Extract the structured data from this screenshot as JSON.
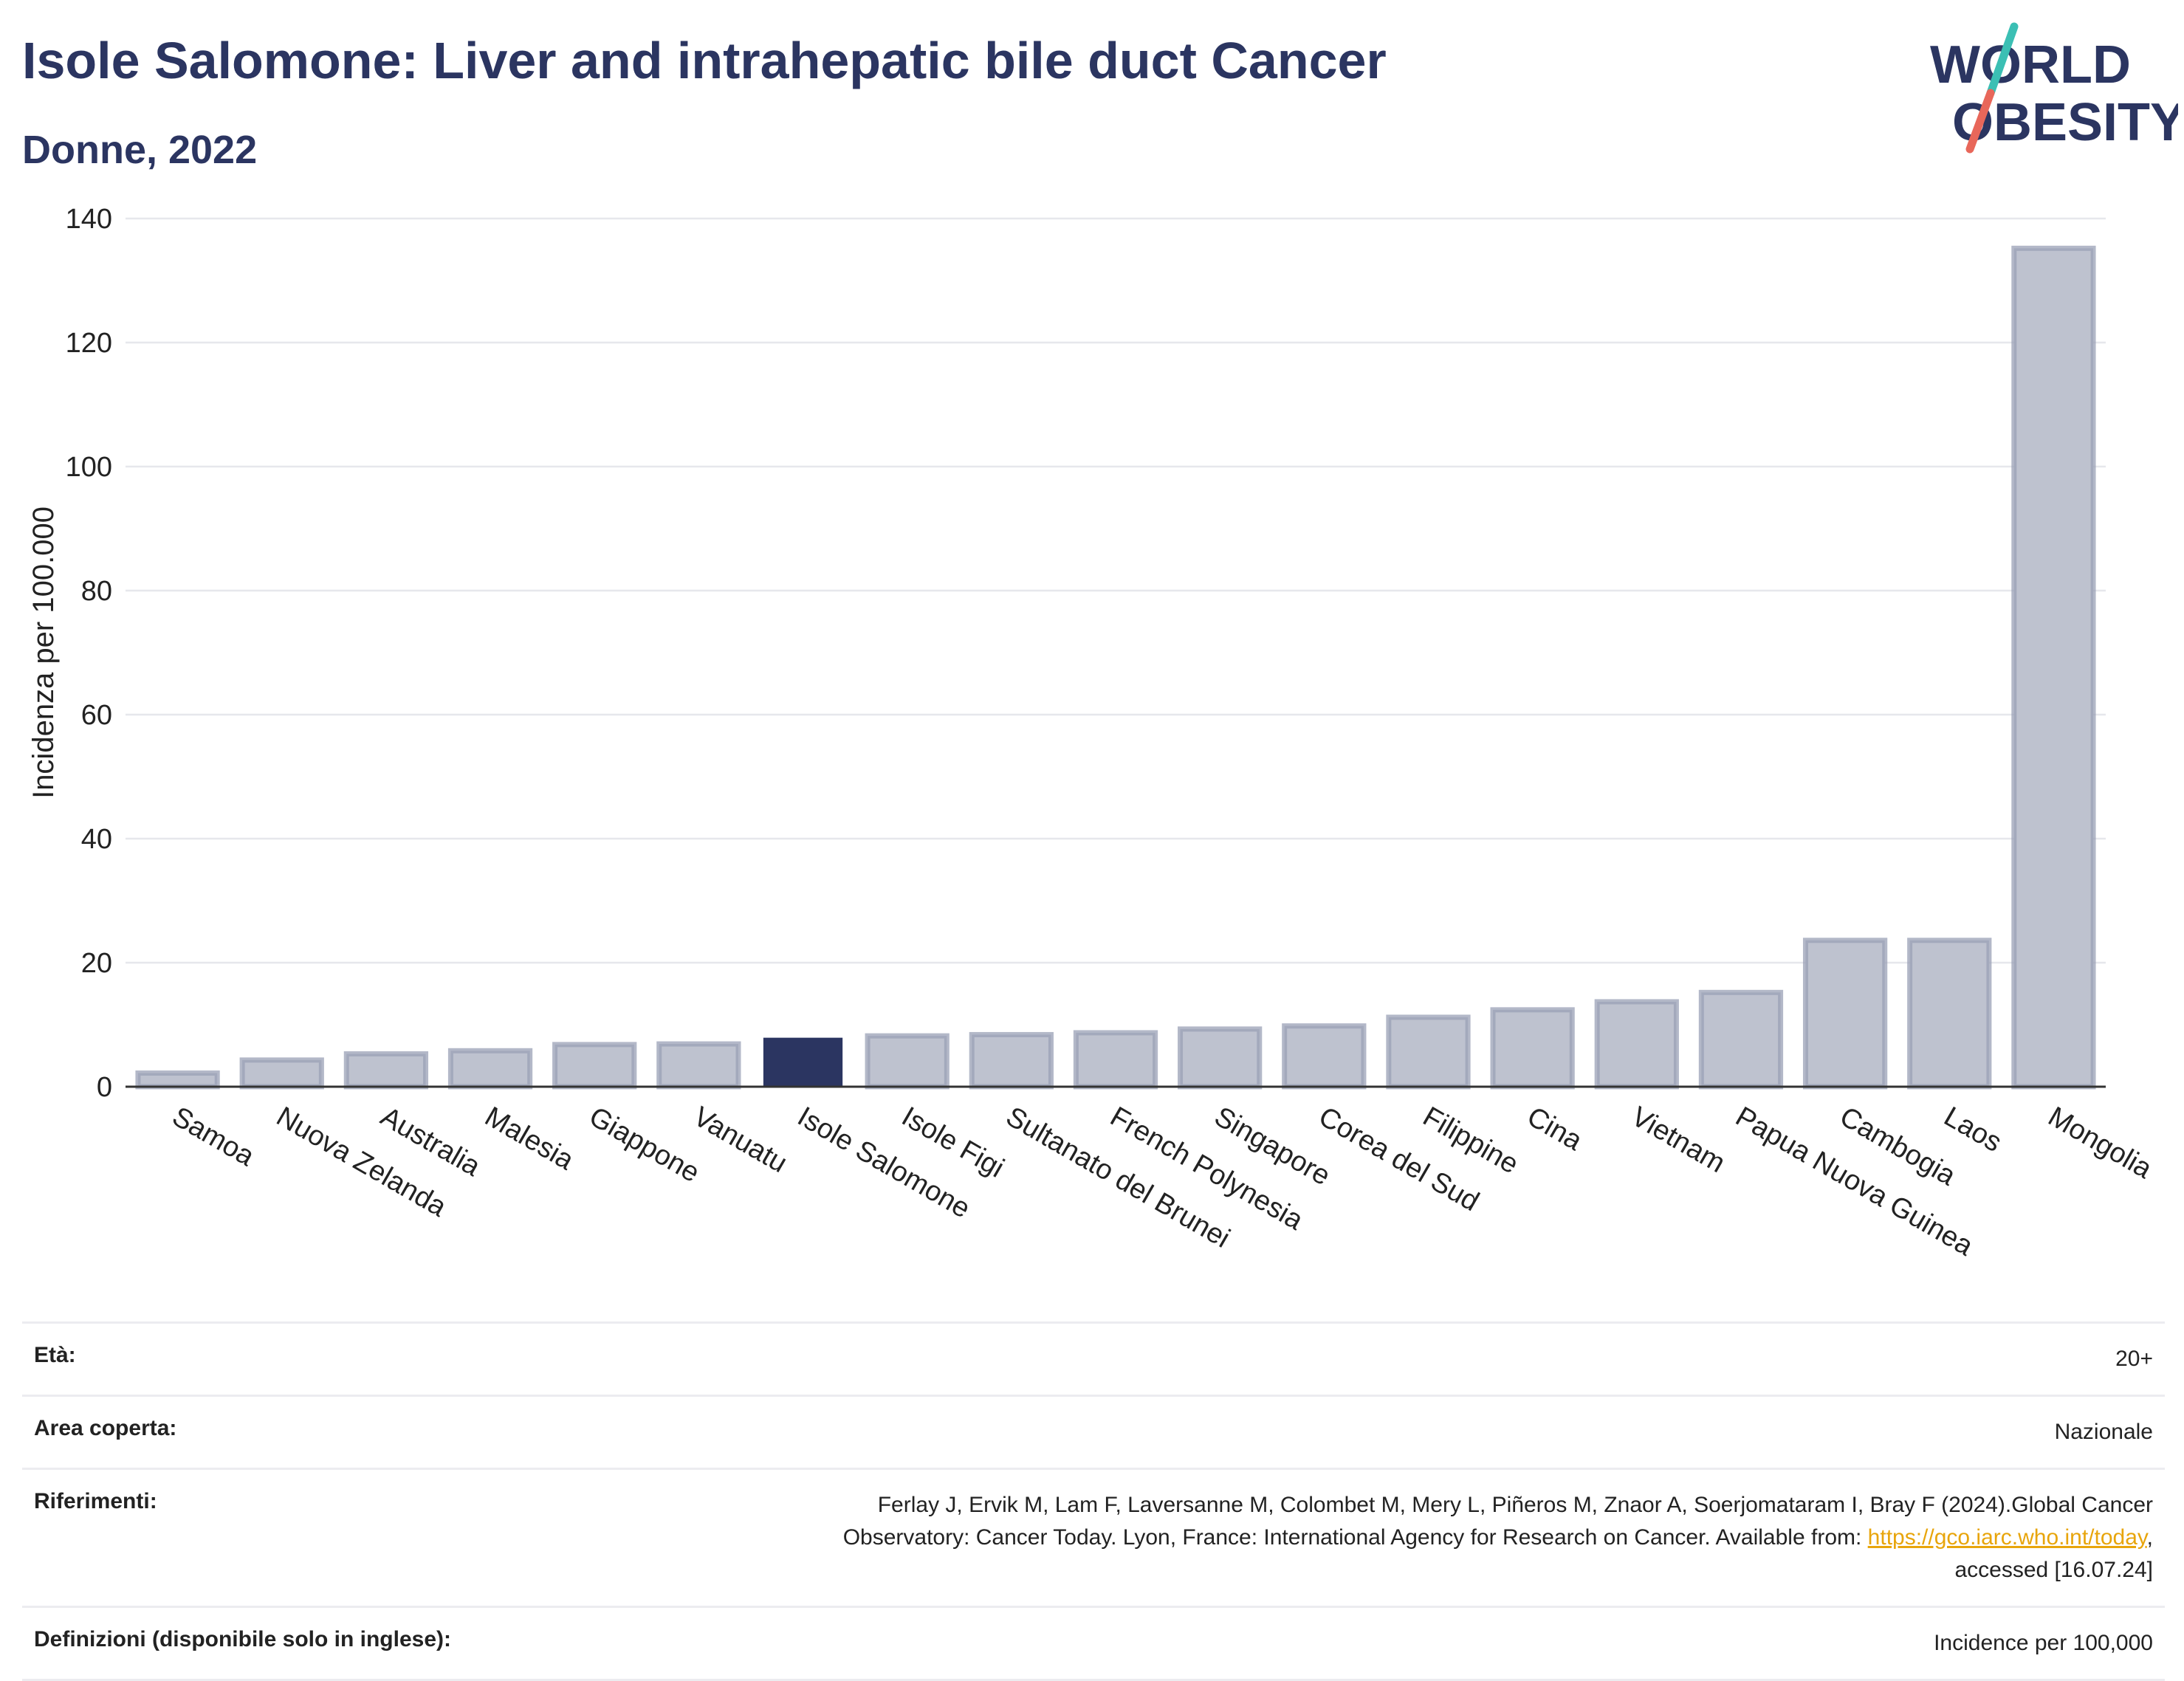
{
  "header": {
    "title": "Isole Salomone: Liver and intrahepatic bile duct Cancer",
    "subtitle": "Donne, 2022"
  },
  "logo": {
    "line1": "WORLD",
    "line2": "OBESITY",
    "colors": {
      "text": "#2b3561",
      "slash_top": "#3bbfb4",
      "slash_bottom": "#e8675a"
    }
  },
  "colors": {
    "bar": "#bec2cf",
    "bar_border": "#9aa0b6",
    "highlight": "#2b3561",
    "grid": "#e6e7ec",
    "axis": "#333333"
  },
  "chart_data": {
    "type": "bar",
    "ylabel": "Incidenza per 100.000",
    "ylim": [
      0,
      140
    ],
    "yticks": [
      0,
      20,
      40,
      60,
      80,
      100,
      120,
      140
    ],
    "grid": true,
    "highlight": "Isole Salomone",
    "categories": [
      "Samoa",
      "Nuova Zelanda",
      "Australia",
      "Malesia",
      "Giappone",
      "Vanuatu",
      "Isole Salomone",
      "Isole Figi",
      "Sultanato del Brunei",
      "French Polynesia",
      "Singapore",
      "Corea del Sud",
      "Filippine",
      "Cina",
      "Vietnam",
      "Papua Nuova Guinea",
      "Cambogia",
      "Laos",
      "Mongolia"
    ],
    "values": [
      2.2,
      4.3,
      5.3,
      5.8,
      6.8,
      6.9,
      7.9,
      8.2,
      8.4,
      8.7,
      9.3,
      9.8,
      11.2,
      12.4,
      13.7,
      15.2,
      23.6,
      23.6,
      135.2
    ]
  },
  "info": {
    "rows": [
      {
        "key": "Età:",
        "value": "20+"
      },
      {
        "key": "Area coperta:",
        "value": "Nazionale"
      },
      {
        "key": "Riferimenti:",
        "value_lines": [
          "Ferlay J, Ervik M, Lam F, Laversanne M, Colombet M, Mery L, Piñeros M, Znaor A, Soerjomataram I, Bray F (2024).Global Cancer",
          "Observatory: Cancer Today. Lyon, France: International Agency for Research on Cancer. Available from: ",
          "https://gco.iarc.who.int/today",
          ",",
          "accessed [16.07.24]"
        ]
      },
      {
        "key": "Definizioni (disponibile solo in inglese):",
        "value": "Incidence per 100,000"
      }
    ]
  }
}
